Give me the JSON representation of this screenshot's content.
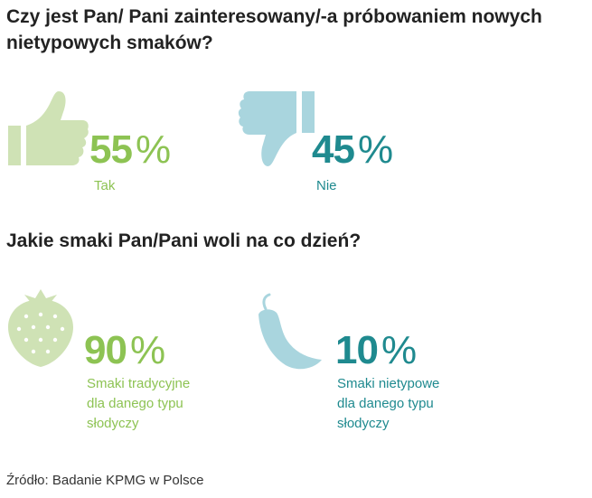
{
  "colors": {
    "green": "#8dc353",
    "green_light": "#cfe2b5",
    "teal": "#1f8a8f",
    "blue_light": "#a9d5de"
  },
  "chart_data": [
    {
      "type": "pictogram",
      "title": "Czy jest Pan/ Pani zainteresowany/-a próbowaniem nowych nietypowych smaków?",
      "unit": "%",
      "items": [
        {
          "value": 55,
          "value_text": "55",
          "label": [
            "Tak"
          ],
          "icon": "thumbs-up-icon"
        },
        {
          "value": 45,
          "value_text": "45",
          "label": [
            "Nie"
          ],
          "icon": "thumbs-down-icon"
        }
      ]
    },
    {
      "type": "pictogram",
      "title": "Jakie smaki Pan/Pani woli na co dzień?",
      "unit": "%",
      "items": [
        {
          "value": 90,
          "value_text": "90",
          "label": [
            "Smaki tradycyjne",
            "dla danego typu",
            "słodyczy"
          ],
          "icon": "strawberry-icon"
        },
        {
          "value": 10,
          "value_text": "10",
          "label": [
            "Smaki nietypowe",
            "dla danego typu",
            "słodyczy"
          ],
          "icon": "chili-pepper-icon"
        }
      ]
    }
  ],
  "footer": {
    "source": "Źródło: Badanie KPMG w Polsce"
  }
}
